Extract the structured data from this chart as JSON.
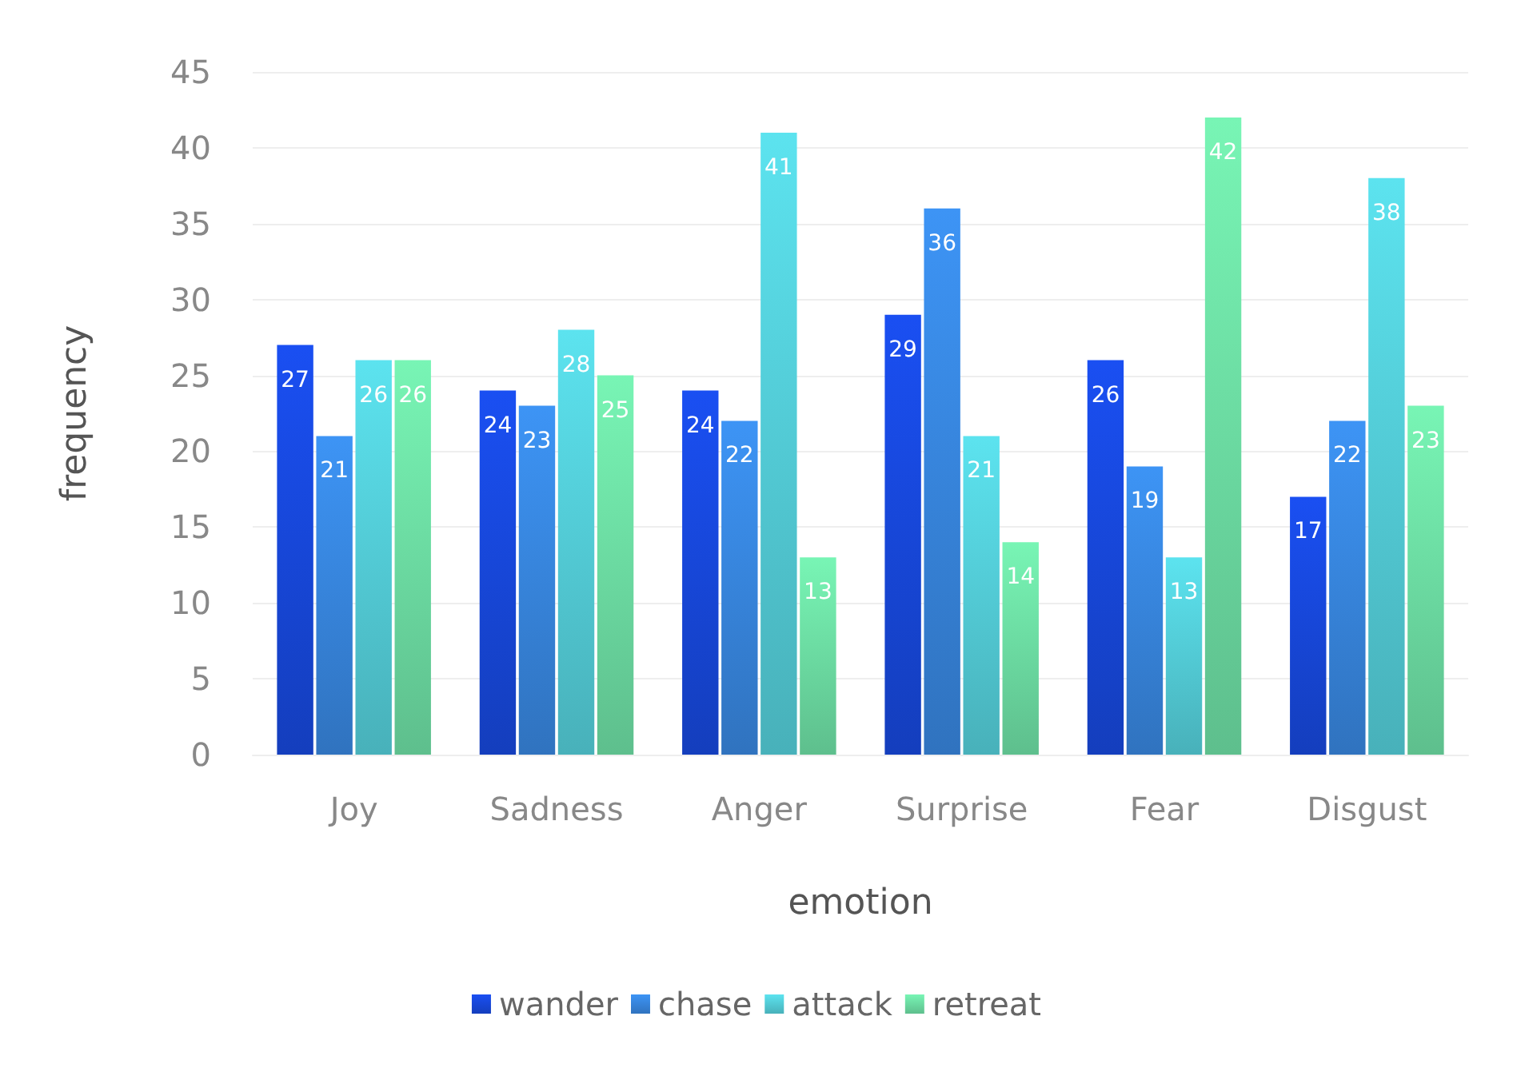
{
  "chart_data": {
    "type": "bar",
    "xlabel": "emotion",
    "ylabel": "frequency",
    "categories": [
      "Joy",
      "Sadness",
      "Anger",
      "Surprise",
      "Fear",
      "Disgust"
    ],
    "series": [
      {
        "name": "wander",
        "color": "#1a4ff2",
        "values": [
          27,
          24,
          24,
          29,
          26,
          17
        ]
      },
      {
        "name": "chase",
        "color": "#3d94f5",
        "values": [
          21,
          23,
          22,
          36,
          19,
          22
        ]
      },
      {
        "name": "attack",
        "color": "#5ce3ef",
        "values": [
          26,
          28,
          41,
          21,
          13,
          38
        ]
      },
      {
        "name": "retreat",
        "color": "#78f5b5",
        "values": [
          26,
          25,
          13,
          14,
          42,
          23
        ]
      }
    ],
    "ylim": [
      0,
      45
    ],
    "yticks": [
      0,
      5,
      10,
      15,
      20,
      25,
      30,
      35,
      40,
      45
    ],
    "grid": "y",
    "legend": "bottom",
    "data_labels": true
  }
}
